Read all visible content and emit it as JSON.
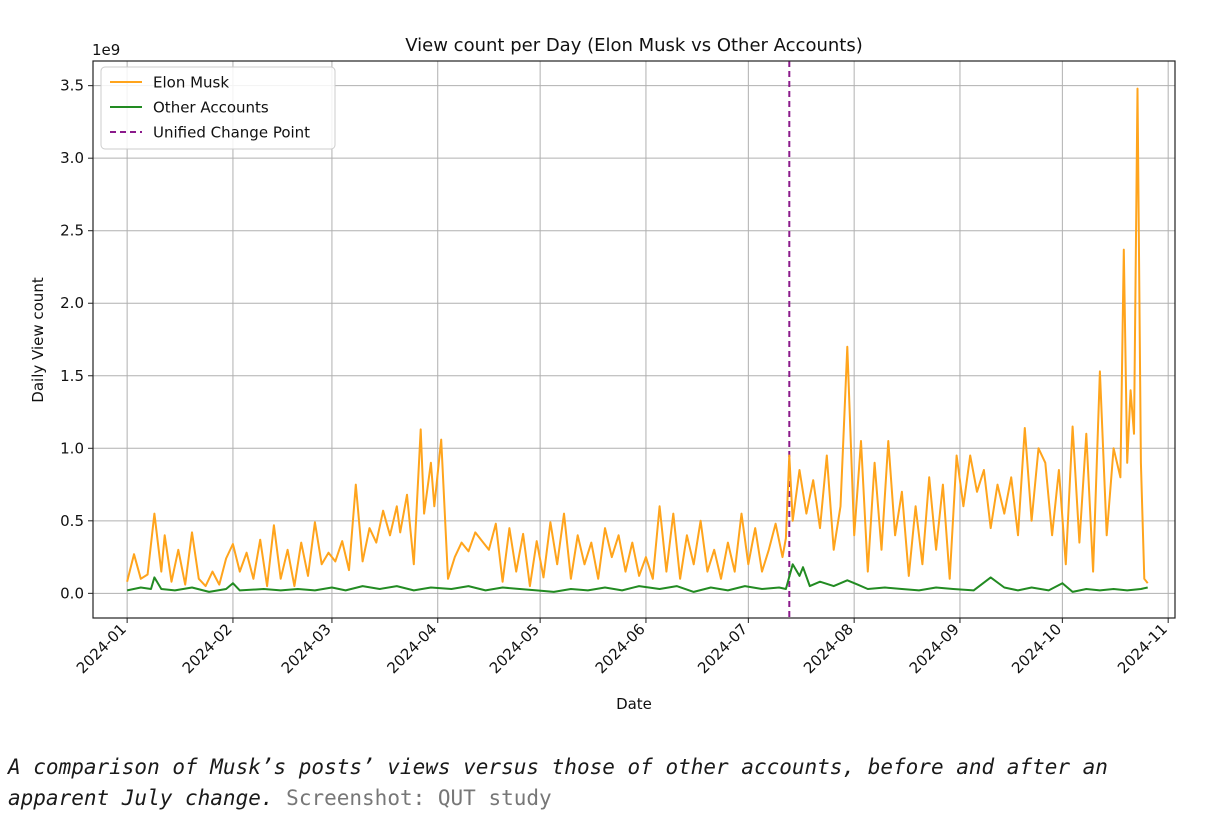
{
  "chart_data": {
    "type": "line",
    "title": "View count per Day (Elon Musk vs Other Accounts)",
    "xlabel": "Date",
    "ylabel": "Daily View count",
    "y_offset_label": "1e9",
    "x_range": [
      "2023-12-22",
      "2024-11-03"
    ],
    "ylim": [
      -0.17,
      3.67
    ],
    "y_ticks": [
      0.0,
      0.5,
      1.0,
      1.5,
      2.0,
      2.5,
      3.0,
      3.5
    ],
    "y_tick_labels": [
      "0.0",
      "0.5",
      "1.0",
      "1.5",
      "2.0",
      "2.5",
      "3.0",
      "3.5"
    ],
    "x_ticks": [
      "2024-01-01",
      "2024-02-01",
      "2024-03-01",
      "2024-04-01",
      "2024-05-01",
      "2024-06-01",
      "2024-07-01",
      "2024-08-01",
      "2024-09-01",
      "2024-10-01",
      "2024-11-01"
    ],
    "x_tick_labels": [
      "2024-01",
      "2024-02",
      "2024-03",
      "2024-04",
      "2024-05",
      "2024-06",
      "2024-07",
      "2024-08",
      "2024-09",
      "2024-10",
      "2024-11"
    ],
    "grid": true,
    "legend": "upper left",
    "change_point": {
      "name": "Unified Change Point",
      "date": "2024-07-13",
      "color": "#8b1a8b"
    },
    "series": [
      {
        "name": "Elon Musk",
        "color": "#ffa41c",
        "points": [
          [
            "2024-01-01",
            0.08
          ],
          [
            "2024-01-03",
            0.27
          ],
          [
            "2024-01-05",
            0.1
          ],
          [
            "2024-01-07",
            0.13
          ],
          [
            "2024-01-09",
            0.55
          ],
          [
            "2024-01-11",
            0.15
          ],
          [
            "2024-01-12",
            0.4
          ],
          [
            "2024-01-14",
            0.08
          ],
          [
            "2024-01-16",
            0.3
          ],
          [
            "2024-01-18",
            0.06
          ],
          [
            "2024-01-20",
            0.42
          ],
          [
            "2024-01-22",
            0.1
          ],
          [
            "2024-01-24",
            0.05
          ],
          [
            "2024-01-26",
            0.15
          ],
          [
            "2024-01-28",
            0.06
          ],
          [
            "2024-01-30",
            0.24
          ],
          [
            "2024-02-01",
            0.34
          ],
          [
            "2024-02-03",
            0.15
          ],
          [
            "2024-02-05",
            0.28
          ],
          [
            "2024-02-07",
            0.1
          ],
          [
            "2024-02-09",
            0.37
          ],
          [
            "2024-02-11",
            0.05
          ],
          [
            "2024-02-13",
            0.47
          ],
          [
            "2024-02-15",
            0.1
          ],
          [
            "2024-02-17",
            0.3
          ],
          [
            "2024-02-19",
            0.05
          ],
          [
            "2024-02-21",
            0.35
          ],
          [
            "2024-02-23",
            0.12
          ],
          [
            "2024-02-25",
            0.49
          ],
          [
            "2024-02-27",
            0.2
          ],
          [
            "2024-02-29",
            0.28
          ],
          [
            "2024-03-02",
            0.22
          ],
          [
            "2024-03-04",
            0.36
          ],
          [
            "2024-03-06",
            0.16
          ],
          [
            "2024-03-08",
            0.75
          ],
          [
            "2024-03-10",
            0.22
          ],
          [
            "2024-03-12",
            0.45
          ],
          [
            "2024-03-14",
            0.35
          ],
          [
            "2024-03-16",
            0.57
          ],
          [
            "2024-03-18",
            0.4
          ],
          [
            "2024-03-20",
            0.6
          ],
          [
            "2024-03-21",
            0.42
          ],
          [
            "2024-03-23",
            0.68
          ],
          [
            "2024-03-25",
            0.2
          ],
          [
            "2024-03-27",
            1.13
          ],
          [
            "2024-03-28",
            0.55
          ],
          [
            "2024-03-30",
            0.9
          ],
          [
            "2024-03-31",
            0.6
          ],
          [
            "2024-04-02",
            1.06
          ],
          [
            "2024-04-04",
            0.1
          ],
          [
            "2024-04-06",
            0.25
          ],
          [
            "2024-04-08",
            0.35
          ],
          [
            "2024-04-10",
            0.29
          ],
          [
            "2024-04-12",
            0.42
          ],
          [
            "2024-04-14",
            0.36
          ],
          [
            "2024-04-16",
            0.3
          ],
          [
            "2024-04-18",
            0.48
          ],
          [
            "2024-04-20",
            0.08
          ],
          [
            "2024-04-22",
            0.45
          ],
          [
            "2024-04-24",
            0.15
          ],
          [
            "2024-04-26",
            0.41
          ],
          [
            "2024-04-28",
            0.05
          ],
          [
            "2024-04-30",
            0.36
          ],
          [
            "2024-05-02",
            0.11
          ],
          [
            "2024-05-04",
            0.49
          ],
          [
            "2024-05-06",
            0.2
          ],
          [
            "2024-05-08",
            0.55
          ],
          [
            "2024-05-10",
            0.1
          ],
          [
            "2024-05-12",
            0.4
          ],
          [
            "2024-05-14",
            0.2
          ],
          [
            "2024-05-16",
            0.35
          ],
          [
            "2024-05-18",
            0.1
          ],
          [
            "2024-05-20",
            0.45
          ],
          [
            "2024-05-22",
            0.25
          ],
          [
            "2024-05-24",
            0.4
          ],
          [
            "2024-05-26",
            0.15
          ],
          [
            "2024-05-28",
            0.35
          ],
          [
            "2024-05-30",
            0.12
          ],
          [
            "2024-06-01",
            0.25
          ],
          [
            "2024-06-03",
            0.1
          ],
          [
            "2024-06-05",
            0.6
          ],
          [
            "2024-06-07",
            0.15
          ],
          [
            "2024-06-09",
            0.55
          ],
          [
            "2024-06-11",
            0.1
          ],
          [
            "2024-06-13",
            0.4
          ],
          [
            "2024-06-15",
            0.2
          ],
          [
            "2024-06-17",
            0.5
          ],
          [
            "2024-06-19",
            0.15
          ],
          [
            "2024-06-21",
            0.3
          ],
          [
            "2024-06-23",
            0.1
          ],
          [
            "2024-06-25",
            0.35
          ],
          [
            "2024-06-27",
            0.15
          ],
          [
            "2024-06-29",
            0.55
          ],
          [
            "2024-07-01",
            0.2
          ],
          [
            "2024-07-03",
            0.45
          ],
          [
            "2024-07-05",
            0.15
          ],
          [
            "2024-07-07",
            0.3
          ],
          [
            "2024-07-09",
            0.48
          ],
          [
            "2024-07-11",
            0.25
          ],
          [
            "2024-07-12",
            0.38
          ],
          [
            "2024-07-13",
            0.95
          ],
          [
            "2024-07-14",
            0.5
          ],
          [
            "2024-07-16",
            0.85
          ],
          [
            "2024-07-18",
            0.55
          ],
          [
            "2024-07-20",
            0.78
          ],
          [
            "2024-07-22",
            0.45
          ],
          [
            "2024-07-24",
            0.95
          ],
          [
            "2024-07-26",
            0.3
          ],
          [
            "2024-07-28",
            0.6
          ],
          [
            "2024-07-30",
            1.7
          ],
          [
            "2024-08-01",
            0.4
          ],
          [
            "2024-08-03",
            1.05
          ],
          [
            "2024-08-05",
            0.15
          ],
          [
            "2024-08-07",
            0.9
          ],
          [
            "2024-08-09",
            0.3
          ],
          [
            "2024-08-11",
            1.05
          ],
          [
            "2024-08-13",
            0.4
          ],
          [
            "2024-08-15",
            0.7
          ],
          [
            "2024-08-17",
            0.12
          ],
          [
            "2024-08-19",
            0.6
          ],
          [
            "2024-08-21",
            0.2
          ],
          [
            "2024-08-23",
            0.8
          ],
          [
            "2024-08-25",
            0.3
          ],
          [
            "2024-08-27",
            0.75
          ],
          [
            "2024-08-29",
            0.1
          ],
          [
            "2024-08-31",
            0.95
          ],
          [
            "2024-09-02",
            0.6
          ],
          [
            "2024-09-04",
            0.95
          ],
          [
            "2024-09-06",
            0.7
          ],
          [
            "2024-09-08",
            0.85
          ],
          [
            "2024-09-10",
            0.45
          ],
          [
            "2024-09-12",
            0.75
          ],
          [
            "2024-09-14",
            0.55
          ],
          [
            "2024-09-16",
            0.8
          ],
          [
            "2024-09-18",
            0.4
          ],
          [
            "2024-09-20",
            1.14
          ],
          [
            "2024-09-22",
            0.5
          ],
          [
            "2024-09-24",
            1.0
          ],
          [
            "2024-09-26",
            0.9
          ],
          [
            "2024-09-28",
            0.4
          ],
          [
            "2024-09-30",
            0.85
          ],
          [
            "2024-10-02",
            0.2
          ],
          [
            "2024-10-04",
            1.15
          ],
          [
            "2024-10-06",
            0.35
          ],
          [
            "2024-10-08",
            1.1
          ],
          [
            "2024-10-10",
            0.15
          ],
          [
            "2024-10-12",
            1.53
          ],
          [
            "2024-10-14",
            0.4
          ],
          [
            "2024-10-16",
            1.0
          ],
          [
            "2024-10-18",
            0.8
          ],
          [
            "2024-10-19",
            2.37
          ],
          [
            "2024-10-20",
            0.9
          ],
          [
            "2024-10-21",
            1.4
          ],
          [
            "2024-10-22",
            1.1
          ],
          [
            "2024-10-23",
            3.48
          ],
          [
            "2024-10-24",
            0.9
          ],
          [
            "2024-10-25",
            0.1
          ],
          [
            "2024-10-26",
            0.07
          ]
        ]
      },
      {
        "name": "Other Accounts",
        "color": "#228b22",
        "points": [
          [
            "2024-01-01",
            0.02
          ],
          [
            "2024-01-05",
            0.04
          ],
          [
            "2024-01-08",
            0.03
          ],
          [
            "2024-01-09",
            0.11
          ],
          [
            "2024-01-11",
            0.03
          ],
          [
            "2024-01-15",
            0.02
          ],
          [
            "2024-01-20",
            0.04
          ],
          [
            "2024-01-25",
            0.01
          ],
          [
            "2024-01-30",
            0.03
          ],
          [
            "2024-02-01",
            0.07
          ],
          [
            "2024-02-03",
            0.02
          ],
          [
            "2024-02-10",
            0.03
          ],
          [
            "2024-02-15",
            0.02
          ],
          [
            "2024-02-20",
            0.03
          ],
          [
            "2024-02-25",
            0.02
          ],
          [
            "2024-03-01",
            0.04
          ],
          [
            "2024-03-05",
            0.02
          ],
          [
            "2024-03-10",
            0.05
          ],
          [
            "2024-03-15",
            0.03
          ],
          [
            "2024-03-20",
            0.05
          ],
          [
            "2024-03-25",
            0.02
          ],
          [
            "2024-03-30",
            0.04
          ],
          [
            "2024-04-05",
            0.03
          ],
          [
            "2024-04-10",
            0.05
          ],
          [
            "2024-04-15",
            0.02
          ],
          [
            "2024-04-20",
            0.04
          ],
          [
            "2024-04-25",
            0.03
          ],
          [
            "2024-04-30",
            0.02
          ],
          [
            "2024-05-05",
            0.01
          ],
          [
            "2024-05-10",
            0.03
          ],
          [
            "2024-05-15",
            0.02
          ],
          [
            "2024-05-20",
            0.04
          ],
          [
            "2024-05-25",
            0.02
          ],
          [
            "2024-05-30",
            0.05
          ],
          [
            "2024-06-05",
            0.03
          ],
          [
            "2024-06-10",
            0.05
          ],
          [
            "2024-06-15",
            0.01
          ],
          [
            "2024-06-20",
            0.04
          ],
          [
            "2024-06-25",
            0.02
          ],
          [
            "2024-06-30",
            0.05
          ],
          [
            "2024-07-05",
            0.03
          ],
          [
            "2024-07-10",
            0.04
          ],
          [
            "2024-07-12",
            0.03
          ],
          [
            "2024-07-14",
            0.2
          ],
          [
            "2024-07-16",
            0.12
          ],
          [
            "2024-07-17",
            0.18
          ],
          [
            "2024-07-19",
            0.05
          ],
          [
            "2024-07-22",
            0.08
          ],
          [
            "2024-07-26",
            0.05
          ],
          [
            "2024-07-30",
            0.09
          ],
          [
            "2024-08-02",
            0.06
          ],
          [
            "2024-08-05",
            0.03
          ],
          [
            "2024-08-10",
            0.04
          ],
          [
            "2024-08-15",
            0.03
          ],
          [
            "2024-08-20",
            0.02
          ],
          [
            "2024-08-25",
            0.04
          ],
          [
            "2024-08-30",
            0.03
          ],
          [
            "2024-09-05",
            0.02
          ],
          [
            "2024-09-10",
            0.11
          ],
          [
            "2024-09-14",
            0.04
          ],
          [
            "2024-09-18",
            0.02
          ],
          [
            "2024-09-22",
            0.04
          ],
          [
            "2024-09-27",
            0.02
          ],
          [
            "2024-10-01",
            0.07
          ],
          [
            "2024-10-04",
            0.01
          ],
          [
            "2024-10-08",
            0.03
          ],
          [
            "2024-10-12",
            0.02
          ],
          [
            "2024-10-16",
            0.03
          ],
          [
            "2024-10-20",
            0.02
          ],
          [
            "2024-10-24",
            0.03
          ],
          [
            "2024-10-26",
            0.04
          ]
        ]
      }
    ]
  },
  "caption": {
    "text": "A comparison of Musk’s posts’ views versus those of other accounts, before and after an apparent July change.",
    "credit": "Screenshot: QUT study"
  }
}
